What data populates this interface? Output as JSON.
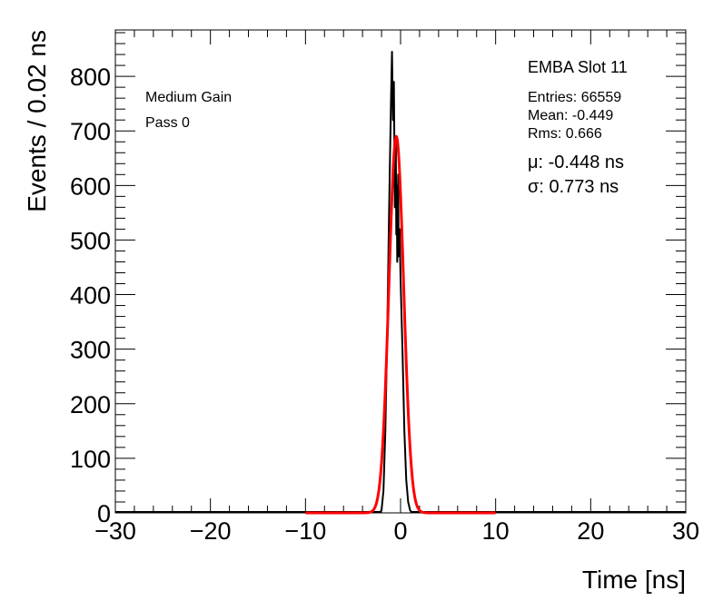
{
  "chart_data": {
    "type": "line",
    "title": "",
    "xlabel": "Time [ns]",
    "ylabel": "Events / 0.02 ns",
    "xlim": [
      -30,
      30
    ],
    "ylim": [
      0,
      885
    ],
    "x_ticks": [
      -30,
      -20,
      -10,
      0,
      10,
      20,
      30
    ],
    "x_tick_labels": [
      "−30",
      "−20",
      "−10",
      "0",
      "10",
      "20",
      "30"
    ],
    "y_ticks": [
      0,
      100,
      200,
      300,
      400,
      500,
      600,
      700,
      800
    ],
    "y_tick_labels": [
      "0",
      "100",
      "200",
      "300",
      "400",
      "500",
      "600",
      "700",
      "800"
    ],
    "grid": false,
    "series": [
      {
        "style": "histogram",
        "color": "#000000",
        "x": [
          -2.2,
          -2.0,
          -1.8,
          -1.6,
          -1.4,
          -1.2,
          -1.0,
          -0.9,
          -0.8,
          -0.7,
          -0.6,
          -0.5,
          -0.45,
          -0.4,
          -0.35,
          -0.3,
          -0.25,
          -0.2,
          -0.1,
          0.0,
          0.2,
          0.4,
          0.6,
          0.8,
          1.0,
          1.2
        ],
        "y": [
          0,
          5,
          40,
          150,
          330,
          560,
          760,
          845,
          720,
          790,
          560,
          680,
          510,
          600,
          460,
          540,
          620,
          470,
          520,
          430,
          300,
          150,
          60,
          20,
          5,
          0
        ]
      },
      {
        "style": "gaussian-fit",
        "color": "#ff0000",
        "mu": -0.448,
        "sigma": 0.773,
        "amplitude": 690,
        "fit_range": [
          -10,
          10
        ]
      }
    ],
    "annotations": {
      "gain": "Medium Gain",
      "pass": "Pass 0",
      "slot": "EMBA Slot 11",
      "entries": "Entries: 66559",
      "mean": "Mean: -0.449",
      "rms": "Rms: 0.666",
      "mu": "μ: -0.448 ns",
      "sigma": "σ: 0.773 ns"
    }
  }
}
